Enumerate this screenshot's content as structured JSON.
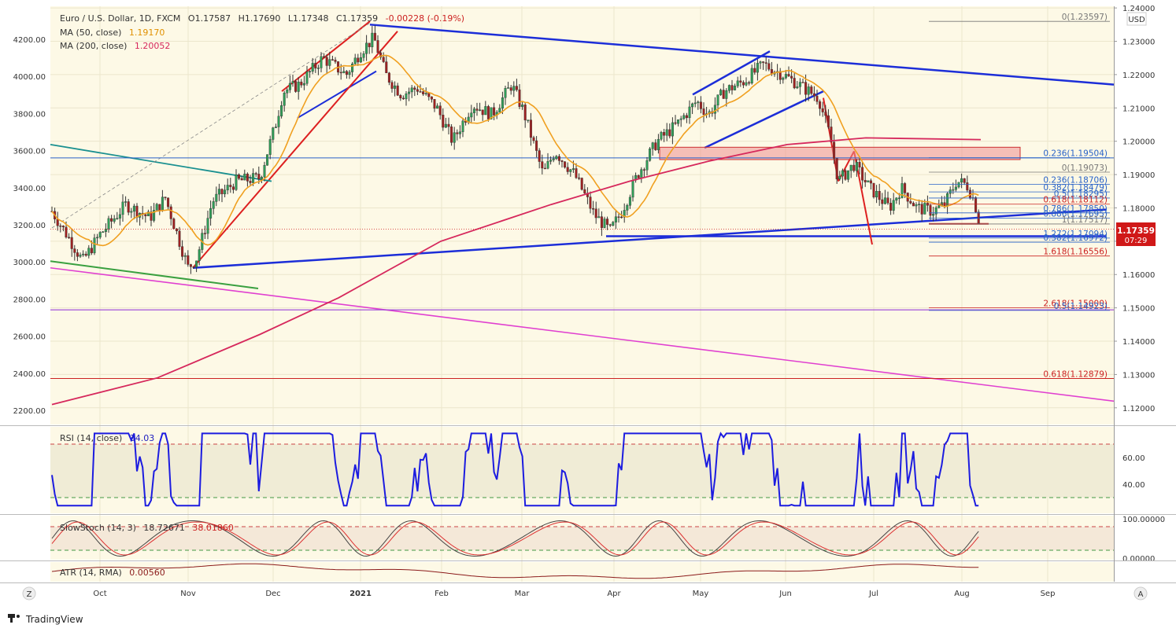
{
  "chart_data": {
    "type": "candlestick",
    "symbol": "Euro / U.S. Dollar, 1D, FXCM",
    "ohlc": {
      "open_label": "O1.17587",
      "high_label": "H1.17690",
      "low_label": "L1.17348",
      "close_label": "C1.17359",
      "change_label": "-0.00228 (-0.19%)"
    },
    "currency": "USD",
    "last_price": "1.17359",
    "countdown": "07:29",
    "indicators": [
      {
        "name": "MA (50, close)",
        "value": "1.19170",
        "color": "#f0a020"
      },
      {
        "name": "MA (200, close)",
        "value": "1.20052",
        "color": "#d6285c"
      }
    ],
    "right_axis": {
      "min": 1.115,
      "max": 1.2405,
      "ticks": [
        "1.24000",
        "1.23000",
        "1.22000",
        "1.21000",
        "1.20000",
        "1.19000",
        "1.18000",
        "1.17000",
        "1.16000",
        "1.15000",
        "1.14000",
        "1.13000",
        "1.12000"
      ]
    },
    "left_axis": {
      "ticks": [
        "4200.00",
        "4000.00",
        "3800.00",
        "3600.00",
        "3400.00",
        "3200.00",
        "3000.00",
        "2800.00",
        "2600.00",
        "2400.00",
        "2200.00"
      ]
    },
    "x_axis": {
      "ticks": [
        "Oct",
        "Nov",
        "Dec",
        "2021",
        "Feb",
        "Mar",
        "Apr",
        "May",
        "Jun",
        "Jul",
        "Aug",
        "Sep"
      ]
    },
    "fib_levels": [
      {
        "label": "0(1.23597)",
        "price": 1.23597,
        "color": "#777777"
      },
      {
        "label": "0.236(1.19504)",
        "price": 1.19504,
        "color": "#2862c8"
      },
      {
        "label": "0(1.19073)",
        "price": 1.19073,
        "color": "#777777"
      },
      {
        "label": "0.236(1.18706)",
        "price": 1.18706,
        "color": "#2862c8"
      },
      {
        "label": "0.382(1.18479)",
        "price": 1.18479,
        "color": "#2862c8"
      },
      {
        "label": "0.5(1.18295)",
        "price": 1.18295,
        "color": "#2862c8"
      },
      {
        "label": "0.618(1.18112)",
        "price": 1.18112,
        "color": "#cc2222"
      },
      {
        "label": "0.786(1.17850)",
        "price": 1.1785,
        "color": "#2862c8"
      },
      {
        "label": "0.886(1.17695)",
        "price": 1.17695,
        "color": "#2862c8"
      },
      {
        "label": "1(1.17517)",
        "price": 1.17517,
        "color": "#777777"
      },
      {
        "label": "1.272(1.17094)",
        "price": 1.17094,
        "color": "#2862c8"
      },
      {
        "label": "0.382(1.16972)",
        "price": 1.16972,
        "color": "#2862c8"
      },
      {
        "label": "1.618(1.16556)",
        "price": 1.16556,
        "color": "#cc2222"
      },
      {
        "label": "2.618(1.15000)",
        "price": 1.15,
        "color": "#cc2222"
      },
      {
        "label": "0.5(1.14923)",
        "price": 1.14923,
        "color": "#2862c8"
      },
      {
        "label": "0.618(1.12879)",
        "price": 1.12879,
        "color": "#cc2222"
      }
    ],
    "rsi": {
      "label": "RSI (14, close)",
      "value": "34.03",
      "ticks": [
        "60.00",
        "40.00"
      ]
    },
    "stoch": {
      "label": "SlowStoch (14, 3)",
      "k": "18.72671",
      "d": "38.01860",
      "ticks": [
        "100.00000",
        "0.00000"
      ]
    },
    "atr": {
      "label": "ATR (14, RMA)",
      "value": "0.00560"
    }
  },
  "footer": {
    "brand": "TradingView",
    "left_button": "Z",
    "right_button": "A"
  }
}
